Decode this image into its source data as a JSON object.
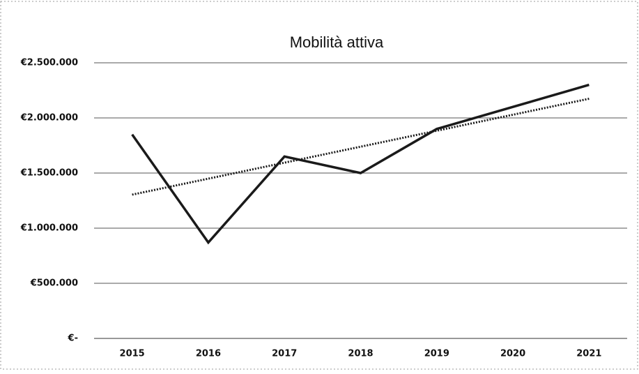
{
  "chart_data": {
    "type": "line",
    "title": "Mobilità attiva",
    "categories": [
      "2015",
      "2016",
      "2017",
      "2018",
      "2019",
      "2020",
      "2021"
    ],
    "series": [
      {
        "color": "#1a1a1a",
        "style": "solid",
        "values": [
          1850000,
          870000,
          1650000,
          1500000,
          1900000,
          2100000,
          2300000
        ]
      },
      {
        "color": "#1a1a1a",
        "style": "dotted",
        "values": [
          1304000,
          1449000,
          1594000,
          1739000,
          1884000,
          2029000,
          2174000
        ]
      }
    ],
    "ylim": [
      0,
      2500000
    ],
    "yticks": [
      {
        "value": 0,
        "label": "€-"
      },
      {
        "value": 500000,
        "label": "€500.000"
      },
      {
        "value": 1000000,
        "label": "€1.000.000"
      },
      {
        "value": 1500000,
        "label": "€1.500.000"
      },
      {
        "value": 2000000,
        "label": "€2.000.000"
      },
      {
        "value": 2500000,
        "label": "€2.500.000"
      }
    ],
    "grid": true
  }
}
